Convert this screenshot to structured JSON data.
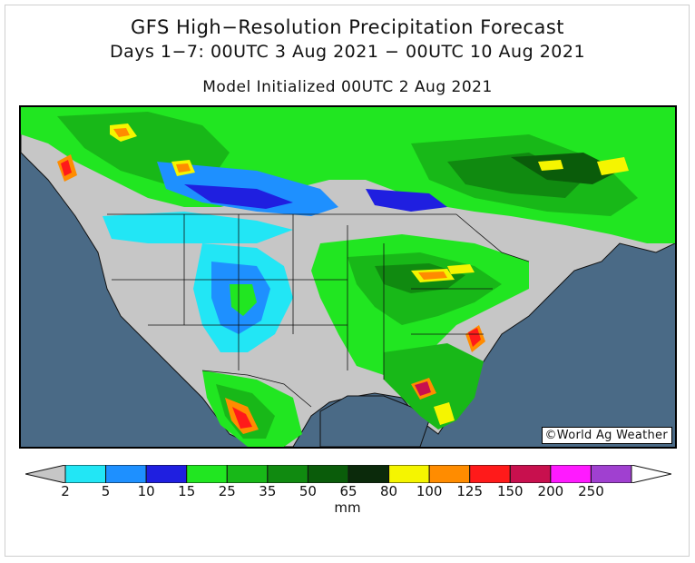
{
  "header": {
    "title": "GFS High−Resolution Precipitation Forecast",
    "subtitle": "Days 1−7: 00UTC 3 Aug 2021 − 00UTC 10 Aug 2021",
    "init": "Model Initialized 00UTC 2 Aug 2021"
  },
  "map": {
    "credit": "©World Ag Weather",
    "ocean_color": "#4a6a86",
    "land_nodata_color": "#c6c6c6"
  },
  "legend": {
    "unit": "mm",
    "bins": [
      {
        "from": 2,
        "to": 5,
        "color": "#22e6f5"
      },
      {
        "from": 5,
        "to": 10,
        "color": "#1e90ff"
      },
      {
        "from": 10,
        "to": 15,
        "color": "#1f1fe0"
      },
      {
        "from": 15,
        "to": 25,
        "color": "#21e621"
      },
      {
        "from": 25,
        "to": 35,
        "color": "#18b818"
      },
      {
        "from": 35,
        "to": 50,
        "color": "#108a10"
      },
      {
        "from": 50,
        "to": 65,
        "color": "#0a5c0a"
      },
      {
        "from": 65,
        "to": 80,
        "color": "#0b2a0b"
      },
      {
        "from": 80,
        "to": 100,
        "color": "#f5f500"
      },
      {
        "from": 100,
        "to": 125,
        "color": "#ff8c00"
      },
      {
        "from": 125,
        "to": 150,
        "color": "#ff1a1a"
      },
      {
        "from": 150,
        "to": 200,
        "color": "#c8104e"
      },
      {
        "from": 200,
        "to": 250,
        "color": "#ff1aff"
      },
      {
        "from": 250,
        "to": null,
        "color": "#a040d0"
      }
    ],
    "below_color": "#c6c6c6",
    "above_color": "#ffffff",
    "tick_labels": [
      "2",
      "5",
      "10",
      "15",
      "25",
      "35",
      "50",
      "65",
      "80",
      "100",
      "125",
      "150",
      "200",
      "250"
    ]
  }
}
